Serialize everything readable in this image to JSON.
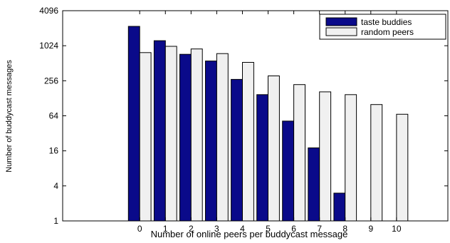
{
  "chart_data": {
    "type": "bar",
    "title": "",
    "xlabel": "Number of online peers per buddycast message",
    "ylabel": "Number of buddycast messages",
    "x_scale": "linear",
    "y_scale": "log2",
    "xlim": [
      -3,
      12
    ],
    "ylim": [
      1,
      4096
    ],
    "grid": false,
    "legend_position": "top-right",
    "categories": [
      "0",
      "1",
      "2",
      "3",
      "4",
      "5",
      "6",
      "7",
      "8",
      "9",
      "10"
    ],
    "y_ticks": [
      "1",
      "4",
      "16",
      "64",
      "256",
      "1024",
      "4096"
    ],
    "series": [
      {
        "name": "taste buddies",
        "color": "#0a0a8a",
        "values": [
          2200,
          1250,
          730,
          560,
          270,
          148,
          52,
          18,
          3,
          null,
          null
        ]
      },
      {
        "name": "random peers",
        "color": "#f0f0f0",
        "values": [
          780,
          1000,
          900,
          750,
          530,
          310,
          220,
          165,
          148,
          100,
          68
        ]
      }
    ]
  }
}
